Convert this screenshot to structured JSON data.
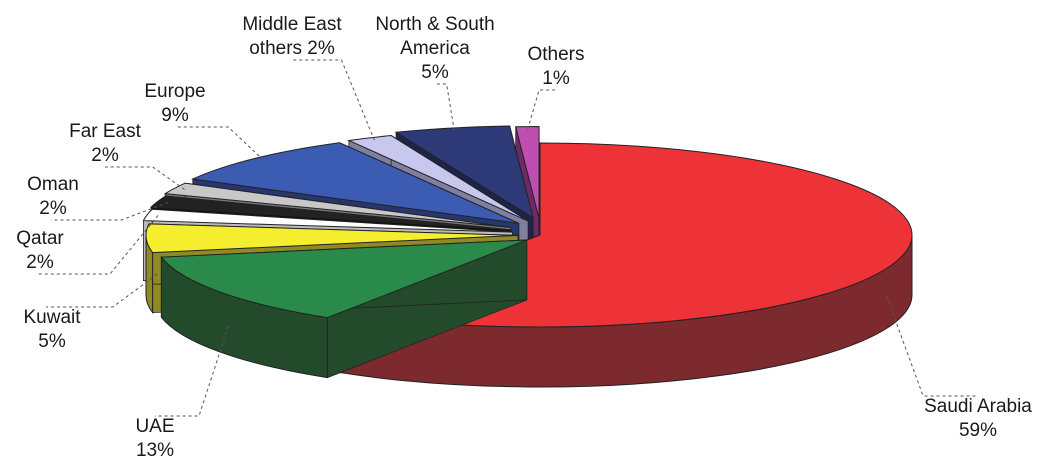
{
  "chart_data": {
    "type": "pie",
    "style": "3d-exploded",
    "legend": "none",
    "slices": [
      {
        "name": "Saudi Arabia",
        "label": [
          "Saudi Arabia",
          "59%"
        ],
        "value": 59,
        "color": "#ee3338",
        "side": "#7d2a2f"
      },
      {
        "name": "UAE",
        "label": [
          "UAE",
          "13%"
        ],
        "value": 13,
        "color": "#2a8a4a",
        "side": "#244a2c"
      },
      {
        "name": "Kuwait",
        "label": [
          "Kuwait",
          "5%"
        ],
        "value": 5,
        "color": "#f4ee2f",
        "side": "#8f8a25"
      },
      {
        "name": "Qatar",
        "label": [
          "Qatar",
          "2%"
        ],
        "value": 2,
        "color": "#ffffff",
        "side": "#bbbbbb"
      },
      {
        "name": "Oman",
        "label": [
          "Oman",
          "2%"
        ],
        "value": 2,
        "color": "#222222",
        "side": "#111111"
      },
      {
        "name": "Far East",
        "label": [
          "Far East",
          "2%"
        ],
        "value": 2,
        "color": "#c8c8c8",
        "side": "#777777"
      },
      {
        "name": "Europe",
        "label": [
          "Europe",
          "9%"
        ],
        "value": 9,
        "color": "#3c5bb2",
        "side": "#27366f"
      },
      {
        "name": "Middle East others",
        "label": [
          "Middle East",
          "others 2%"
        ],
        "value": 2,
        "color": "#c8c8ee",
        "side": "#7f7fa0"
      },
      {
        "name": "North & South America",
        "label": [
          "North & South",
          "America",
          "5%"
        ],
        "value": 5,
        "color": "#2e3a78",
        "side": "#1d2448"
      },
      {
        "name": "Others",
        "label": [
          "Others",
          "1%"
        ],
        "value": 1,
        "color": "#c04db0",
        "side": "#6e2a66"
      }
    ]
  }
}
